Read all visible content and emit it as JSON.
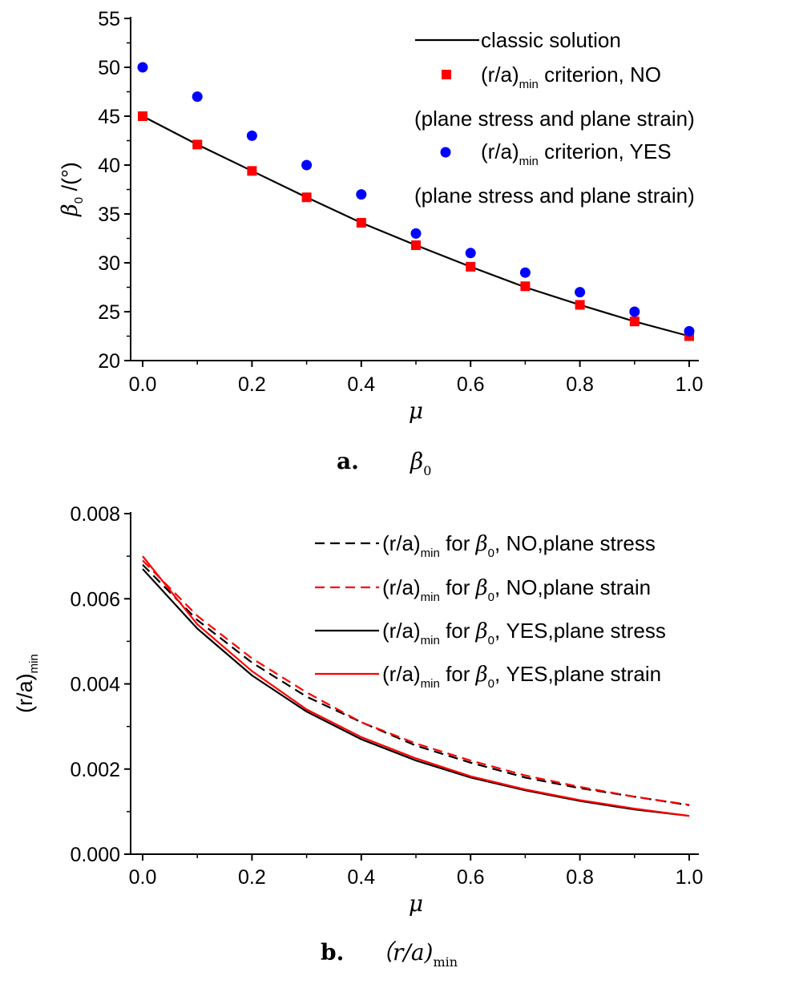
{
  "chart_data": [
    {
      "id": "a",
      "type": "scatter+line",
      "caption_label": "a.",
      "caption_symbol": "β",
      "caption_sub": "0",
      "xlabel": "μ",
      "ylabel_symbol": "β",
      "ylabel_sub": "0",
      "ylabel_unit": " /(°)",
      "xlim": [
        0,
        1.0
      ],
      "ylim": [
        20,
        55
      ],
      "xticks": [
        "0.0",
        "0.2",
        "0.4",
        "0.6",
        "0.8",
        "1.0"
      ],
      "xtick_values": [
        0,
        0.2,
        0.4,
        0.6,
        0.8,
        1.0
      ],
      "yticks": [
        "20",
        "25",
        "30",
        "35",
        "40",
        "45",
        "50",
        "55"
      ],
      "ytick_values": [
        20,
        25,
        30,
        35,
        40,
        45,
        50,
        55
      ],
      "grid": false,
      "legend_position": "top-right",
      "series": [
        {
          "key": "classic",
          "name": "classic solution",
          "style": "line",
          "color": "#000000",
          "x": [
            0,
            0.1,
            0.2,
            0.3,
            0.4,
            0.5,
            0.6,
            0.7,
            0.8,
            0.9,
            1.0
          ],
          "values": [
            45.0,
            42.1,
            39.4,
            36.7,
            34.1,
            31.8,
            29.6,
            27.5,
            25.7,
            24.0,
            22.5
          ]
        },
        {
          "key": "no",
          "name_pre": "(r/a)",
          "name_sub": "min",
          "name_post": " criterion, NO",
          "name_line2": "(plane stress and plane strain)",
          "style": "square",
          "color": "#ff0000",
          "x": [
            0,
            0.1,
            0.2,
            0.3,
            0.4,
            0.5,
            0.6,
            0.7,
            0.8,
            0.9,
            1.0
          ],
          "values": [
            45.0,
            42.1,
            39.4,
            36.7,
            34.1,
            31.8,
            29.6,
            27.6,
            25.7,
            24.0,
            22.5
          ]
        },
        {
          "key": "yes",
          "name_pre": "(r/a)",
          "name_sub": "min",
          "name_post": " criterion, YES",
          "name_line2": "(plane stress and plane strain)",
          "style": "circle",
          "color": "#0000ff",
          "x": [
            0,
            0.1,
            0.2,
            0.3,
            0.4,
            0.5,
            0.6,
            0.7,
            0.8,
            0.9,
            1.0
          ],
          "values": [
            50,
            47,
            43,
            40,
            37,
            33,
            31,
            29,
            27,
            25,
            23
          ]
        }
      ]
    },
    {
      "id": "b",
      "type": "line",
      "caption_label": "b.",
      "caption_symbol": "（r/a)",
      "caption_sub": "min",
      "xlabel": "μ",
      "ylabel_pre": "(r/a)",
      "ylabel_sub": "min",
      "xlim": [
        0,
        1.0
      ],
      "ylim": [
        0,
        0.008
      ],
      "xticks": [
        "0.0",
        "0.2",
        "0.4",
        "0.6",
        "0.8",
        "1.0"
      ],
      "xtick_values": [
        0,
        0.2,
        0.4,
        0.6,
        0.8,
        1.0
      ],
      "yticks": [
        "0.000",
        "0.002",
        "0.004",
        "0.006",
        "0.008"
      ],
      "ytick_values": [
        0,
        0.002,
        0.004,
        0.006,
        0.008
      ],
      "grid": false,
      "legend_position": "top-right",
      "series": [
        {
          "key": "no-stress",
          "name_pre": "(r/a)",
          "name_sub": "min",
          "name_mid": " for ",
          "name_greek": "β",
          "name_greek_sub": "0",
          "name_post": ", NO,plane stress",
          "color": "#000000",
          "dash": true,
          "x": [
            0,
            0.1,
            0.2,
            0.3,
            0.4,
            0.5,
            0.6,
            0.7,
            0.8,
            0.9,
            1.0
          ],
          "values": [
            0.0068,
            0.0055,
            0.0045,
            0.0037,
            0.0031,
            0.00255,
            0.00215,
            0.0018,
            0.00155,
            0.00135,
            0.00115
          ]
        },
        {
          "key": "no-strain",
          "name_pre": "(r/a)",
          "name_sub": "min",
          "name_mid": " for ",
          "name_greek": "β",
          "name_greek_sub": "0",
          "name_post": ", NO,plane strain",
          "color": "#ff0000",
          "dash": true,
          "x": [
            0,
            0.1,
            0.2,
            0.3,
            0.4,
            0.5,
            0.6,
            0.7,
            0.8,
            0.9,
            1.0
          ],
          "values": [
            0.0069,
            0.0056,
            0.0046,
            0.0038,
            0.0031,
            0.0026,
            0.0022,
            0.00185,
            0.00158,
            0.00135,
            0.00116
          ]
        },
        {
          "key": "yes-stress",
          "name_pre": "(r/a)",
          "name_sub": "min",
          "name_mid": " for ",
          "name_greek": "β",
          "name_greek_sub": "0",
          "name_post": ", YES,plane stress",
          "color": "#000000",
          "dash": false,
          "x": [
            0,
            0.1,
            0.2,
            0.3,
            0.4,
            0.5,
            0.6,
            0.7,
            0.8,
            0.9,
            1.0
          ],
          "values": [
            0.0067,
            0.0053,
            0.0042,
            0.00335,
            0.0027,
            0.0022,
            0.0018,
            0.0015,
            0.00125,
            0.00105,
            0.0009
          ]
        },
        {
          "key": "yes-strain",
          "name_pre": "(r/a)",
          "name_sub": "min",
          "name_mid": " for ",
          "name_greek": "β",
          "name_greek_sub": "0",
          "name_post": ", YES,plane strain",
          "color": "#ff0000",
          "dash": false,
          "x": [
            0,
            0.1,
            0.2,
            0.3,
            0.4,
            0.5,
            0.6,
            0.7,
            0.8,
            0.9,
            1.0
          ],
          "values": [
            0.007,
            0.0054,
            0.0043,
            0.0034,
            0.00275,
            0.00225,
            0.00183,
            0.00152,
            0.00127,
            0.00107,
            0.0009
          ]
        }
      ]
    }
  ]
}
